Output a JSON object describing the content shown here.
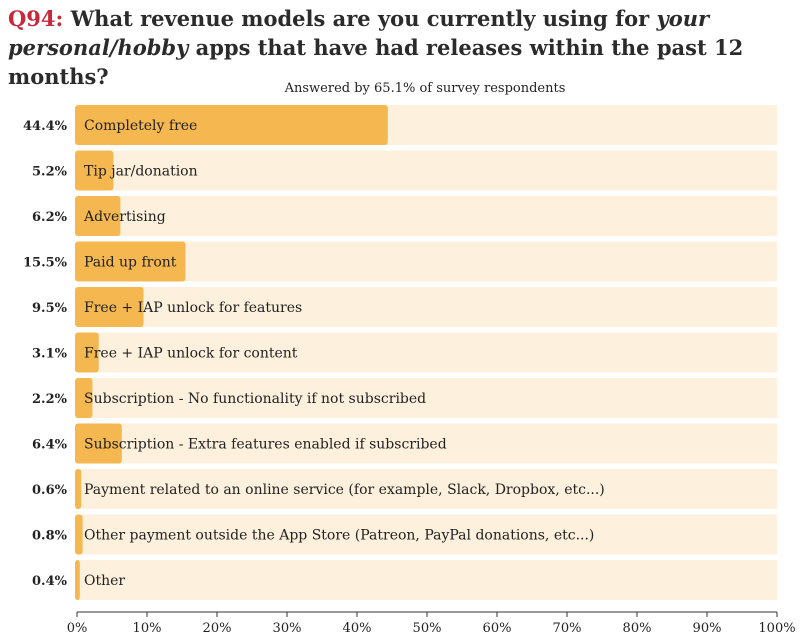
{
  "title": {
    "qnum": "Q94:",
    "before": " What revenue models are you currently using for ",
    "emph": "your personal/hobby",
    "after": " apps that have had releases within the past 12 months?"
  },
  "colors": {
    "bar": "#f5b750",
    "track": "#fdf0dc",
    "accent": "#c8283c"
  },
  "chart_data": {
    "type": "bar",
    "orientation": "horizontal",
    "subtitle": "Answered by 65.1% of survey respondents",
    "categories": [
      "Completely free",
      "Tip jar/donation",
      "Advertising",
      "Paid up front",
      "Free + IAP unlock for features",
      "Free + IAP unlock for content",
      "Subscription - No functionality if not subscribed",
      "Subscription - Extra features enabled if subscribed",
      "Payment related to an online service (for example, Slack, Dropbox, etc...)",
      "Other payment outside the App Store (Patreon, PayPal donations, etc...)",
      "Other"
    ],
    "values": [
      44.4,
      5.2,
      6.2,
      15.5,
      9.5,
      3.1,
      2.2,
      6.4,
      0.6,
      0.8,
      0.4
    ],
    "value_labels": [
      "44.4%",
      "5.2%",
      "6.2%",
      "15.5%",
      "9.5%",
      "3.1%",
      "2.2%",
      "6.4%",
      "0.6%",
      "0.8%",
      "0.4%"
    ],
    "xlim": [
      0,
      100
    ],
    "xticks": [
      0,
      10,
      20,
      30,
      40,
      50,
      60,
      70,
      80,
      90,
      100
    ],
    "xtick_labels": [
      "0%",
      "10%",
      "20%",
      "30%",
      "40%",
      "50%",
      "60%",
      "70%",
      "80%",
      "90%",
      "100%"
    ],
    "grid": false,
    "legend": "none"
  }
}
